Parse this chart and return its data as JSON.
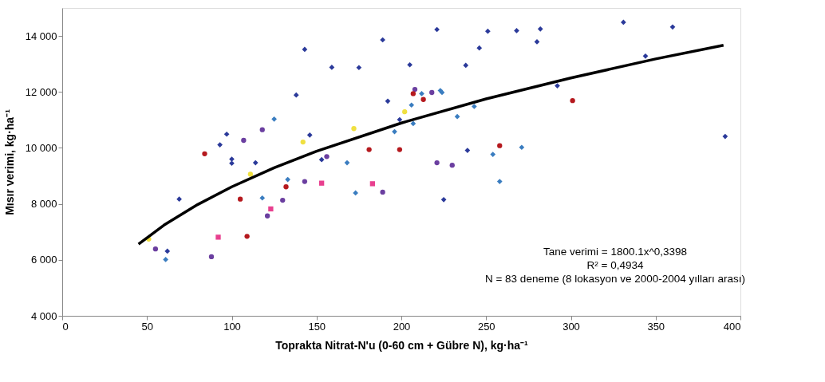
{
  "chart_data": {
    "type": "scatter",
    "xlabel": "Toprakta Nitrat-N'u (0-60 cm + Gübre N), kg·ha⁻¹",
    "ylabel": "Mısır verimi, kg·ha⁻¹",
    "xlim": [
      0,
      400
    ],
    "xticks": [
      0,
      50,
      100,
      150,
      200,
      250,
      300,
      350,
      400
    ],
    "ylim": [
      4000,
      15000
    ],
    "yticks": [
      {
        "value": 4000,
        "label": "4 000"
      },
      {
        "value": 6000,
        "label": "6 000"
      },
      {
        "value": 8000,
        "label": "8 000"
      },
      {
        "value": 10000,
        "label": "10 000"
      },
      {
        "value": 12000,
        "label": "12 000"
      },
      {
        "value": 14000,
        "label": "14 000"
      }
    ],
    "grid": false,
    "series": [
      {
        "color": "#2b3a9a",
        "marker": "diamond",
        "x": [
          62,
          69,
          93,
          97,
          100,
          100,
          114,
          138,
          143,
          146,
          153,
          159,
          175,
          189,
          192,
          199,
          205,
          221,
          225,
          238,
          239,
          246,
          251,
          268,
          282,
          280,
          292,
          331,
          360,
          344,
          391
        ],
        "values": [
          6310,
          8170,
          10110,
          10490,
          9600,
          9450,
          9470,
          11890,
          13520,
          10460,
          9580,
          12880,
          12870,
          13860,
          11670,
          11010,
          12970,
          14230,
          8150,
          12950,
          9910,
          13570,
          14170,
          14190,
          14250,
          13790,
          12220,
          14490,
          14320,
          13280,
          10410
        ]
      },
      {
        "color": "#3a7dc0",
        "marker": "diamond",
        "x": [
          61,
          118,
          125,
          133,
          168,
          173,
          196,
          206,
          207,
          212,
          223,
          224,
          233,
          243,
          254,
          258,
          271
        ],
        "values": [
          6010,
          8210,
          11030,
          8870,
          9470,
          8390,
          10580,
          11530,
          10870,
          11940,
          12050,
          11980,
          11120,
          11480,
          9770,
          8800,
          10020
        ]
      },
      {
        "color": "#6b3fa0",
        "marker": "circle",
        "x": [
          55,
          88,
          107,
          118,
          121,
          130,
          143,
          156,
          189,
          208,
          218,
          221,
          230
        ],
        "values": [
          6390,
          6110,
          10270,
          10650,
          7570,
          8130,
          8800,
          9690,
          8420,
          12090,
          11980,
          9470,
          9380
        ]
      },
      {
        "color": "#b5191e",
        "marker": "circle",
        "x": [
          84,
          105,
          109,
          132,
          181,
          199,
          207,
          213,
          258,
          301
        ],
        "values": [
          9790,
          8170,
          6840,
          8610,
          9940,
          9940,
          11940,
          11730,
          10080,
          11690
        ]
      },
      {
        "color": "#e8408f",
        "marker": "square",
        "x": [
          92,
          123,
          153,
          183
        ],
        "values": [
          6810,
          7820,
          8740,
          8720
        ]
      },
      {
        "color": "#f0e040",
        "marker": "circle",
        "x": [
          51,
          111,
          142,
          172,
          202
        ],
        "values": [
          6740,
          9060,
          10210,
          10690,
          11290
        ]
      },
      {
        "type": "line",
        "color": "#000000",
        "marker": "none",
        "line_style": "solid",
        "x": [
          45,
          60,
          80,
          100,
          125,
          150,
          200,
          250,
          300,
          350,
          390
        ],
        "values": [
          6560,
          7240,
          7980,
          8610,
          9290,
          9880,
          10890,
          11750,
          12500,
          13180,
          13670
        ]
      }
    ],
    "annotations": [
      "Tane verimi = 1800.1x^0,3398",
      "R² = 0,4934",
      "N = 83 deneme (8 lokasyon ve 2000-2004 yılları arası)"
    ]
  }
}
